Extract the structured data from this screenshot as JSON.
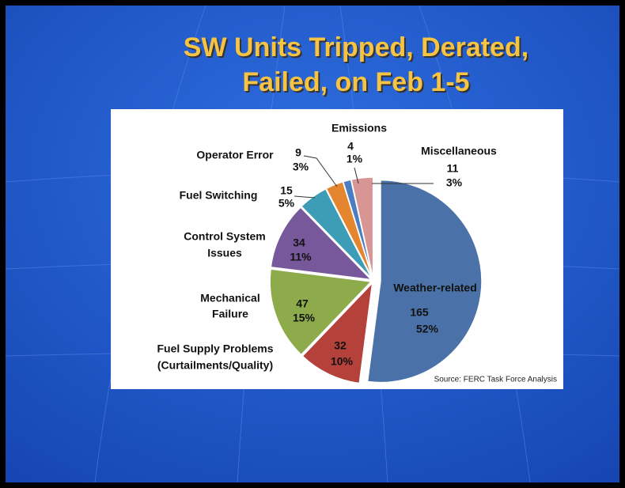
{
  "title": [
    "SW Units Tripped, Derated,",
    "Failed, on Feb 1-5"
  ],
  "chart_data": {
    "type": "pie",
    "categories": [
      [
        "Weather-related"
      ],
      [
        "Fuel Supply Problems",
        "(Curtailments/Quality)"
      ],
      [
        "Mechanical",
        "Failure"
      ],
      [
        "Control System",
        "Issues"
      ],
      [
        "Fuel Switching"
      ],
      [
        "Operator Error"
      ],
      [
        "Emissions"
      ],
      [
        "Miscellaneous"
      ]
    ],
    "values": [
      165,
      32,
      47,
      34,
      15,
      9,
      4,
      11
    ],
    "value_labels": [
      "52%",
      "10%",
      "15%",
      "11%",
      "5%",
      "3%",
      "1%",
      "3%"
    ],
    "colors": [
      "#4a72a8",
      "#b5413b",
      "#8dab4a",
      "#77589a",
      "#3e9db6",
      "#e3862f",
      "#4c7dc0",
      "#d79593"
    ],
    "source": "Source: FERC Task Force Analysis"
  }
}
